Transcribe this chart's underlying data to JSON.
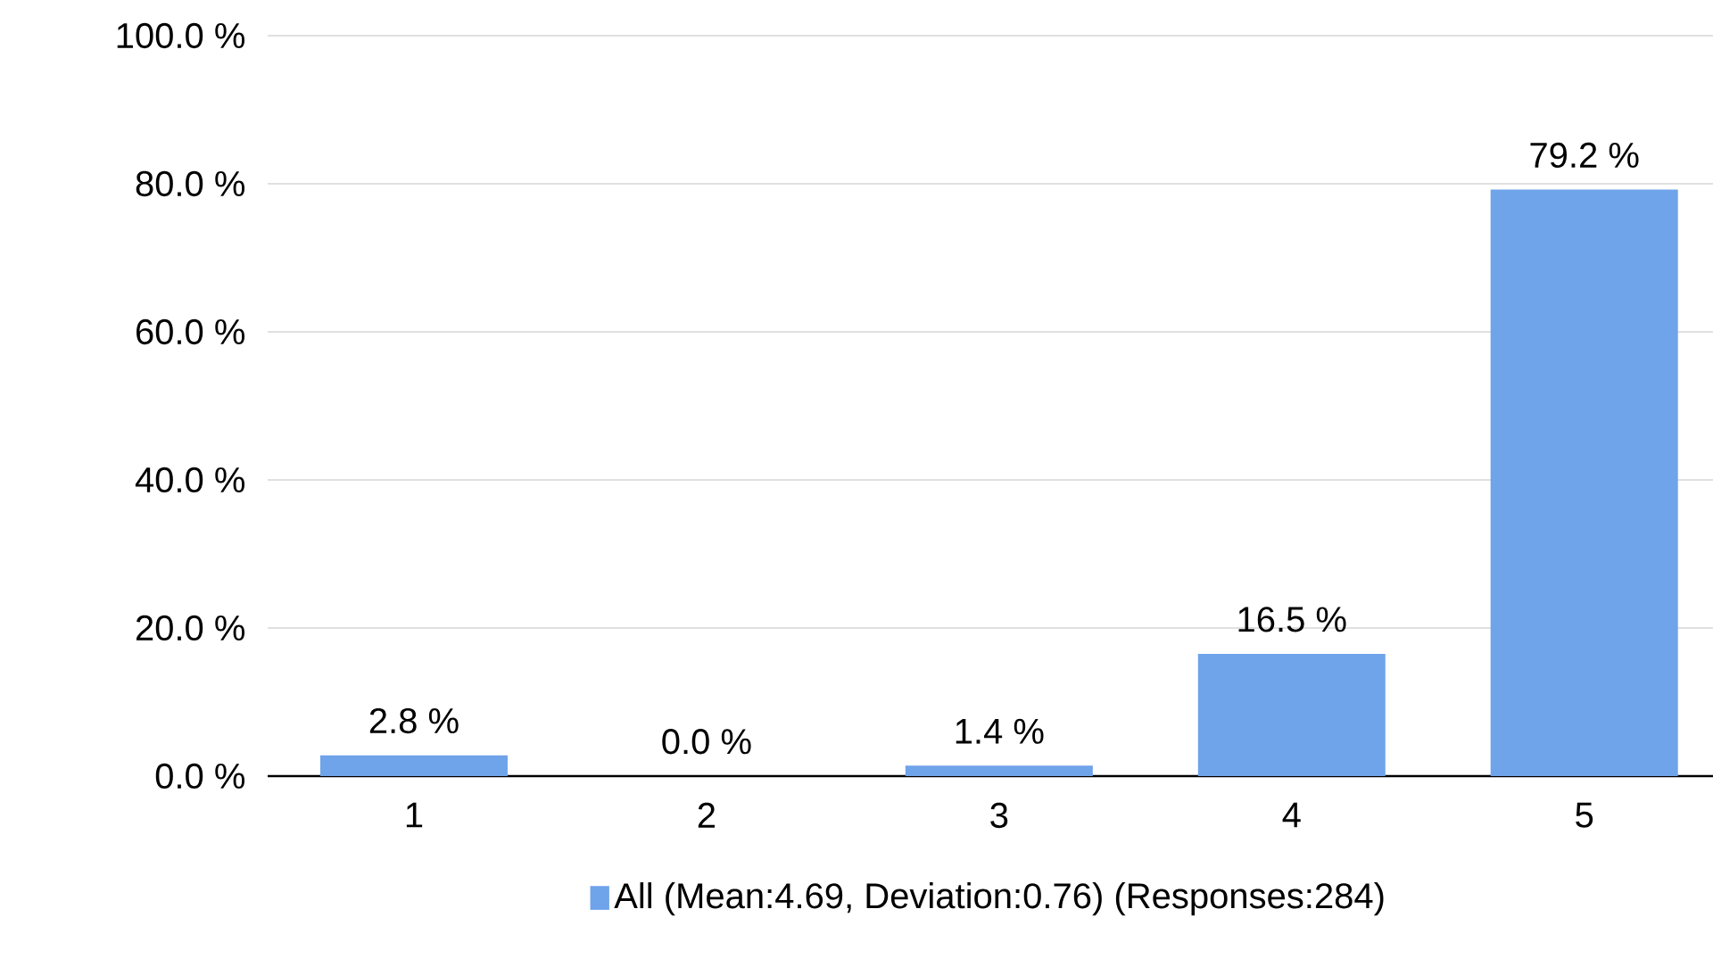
{
  "chart_data": {
    "type": "bar",
    "categories": [
      "1",
      "2",
      "3",
      "4",
      "5"
    ],
    "series": [
      {
        "name": "All (Mean:4.69, Deviation:0.76) (Responses:284)",
        "color": "#6fa3ea",
        "values": [
          2.8,
          0.0,
          1.4,
          16.5,
          79.2
        ],
        "value_labels": [
          "2.8 %",
          "0.0 %",
          "1.4 %",
          "16.5 %",
          "79.2 %"
        ]
      }
    ],
    "ylim": [
      0,
      100
    ],
    "yticks": [
      {
        "value": 0,
        "label": "0.0 %"
      },
      {
        "value": 20,
        "label": "20.0 %"
      },
      {
        "value": 40,
        "label": "40.0 %"
      },
      {
        "value": 60,
        "label": "60.0 %"
      },
      {
        "value": 80,
        "label": "80.0 %"
      },
      {
        "value": 100,
        "label": "100.0 %"
      }
    ],
    "grid": "y",
    "legend": "bottom"
  }
}
